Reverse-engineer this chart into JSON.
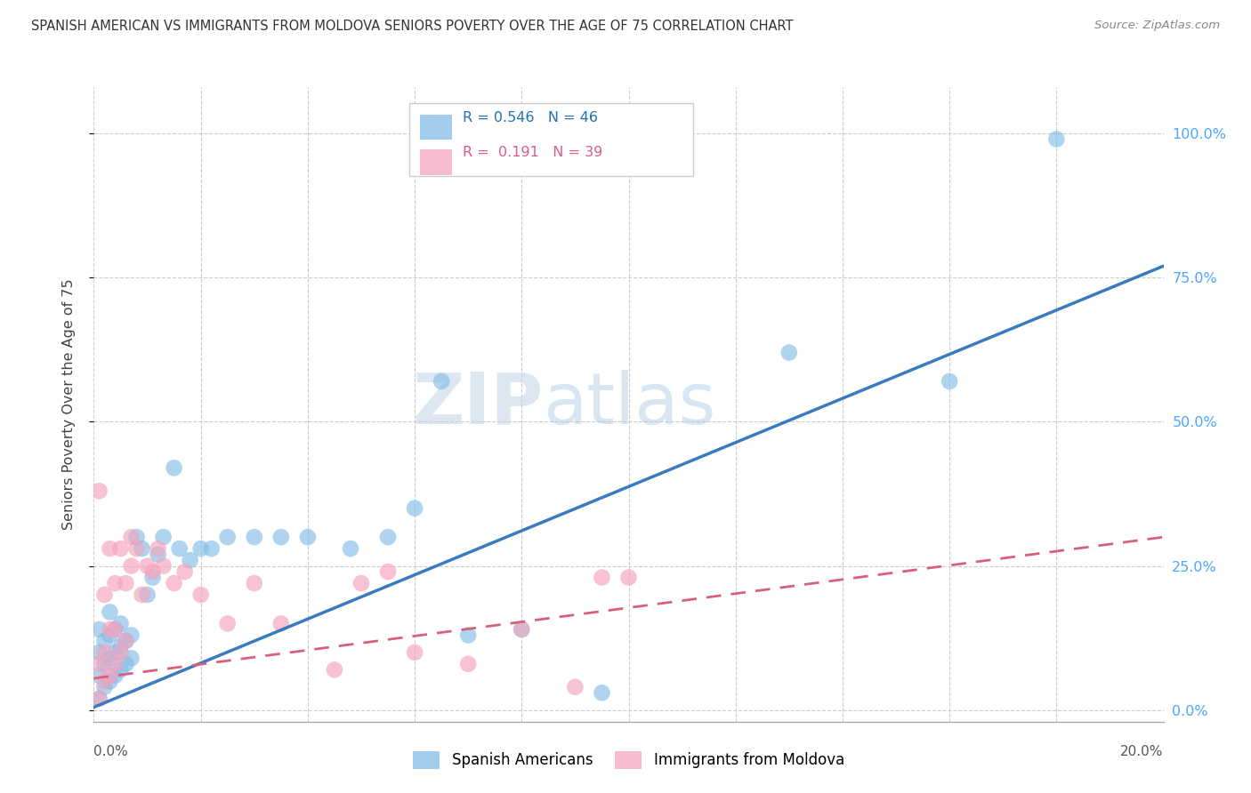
{
  "title": "SPANISH AMERICAN VS IMMIGRANTS FROM MOLDOVA SENIORS POVERTY OVER THE AGE OF 75 CORRELATION CHART",
  "source": "Source: ZipAtlas.com",
  "ylabel": "Seniors Poverty Over the Age of 75",
  "xmin": 0.0,
  "xmax": 0.2,
  "ymin": -0.02,
  "ymax": 1.08,
  "yticks": [
    0.0,
    0.25,
    0.5,
    0.75,
    1.0
  ],
  "ytick_labels": [
    "0.0%",
    "25.0%",
    "50.0%",
    "75.0%",
    "100.0%"
  ],
  "legend1_R": "0.546",
  "legend1_N": "46",
  "legend2_R": "0.191",
  "legend2_N": "39",
  "legend1_label": "Spanish Americans",
  "legend2_label": "Immigrants from Moldova",
  "blue_color": "#85bde8",
  "pink_color": "#f4a4bc",
  "blue_line_color": "#3a7bbf",
  "pink_line_color": "#d9607a",
  "watermark_zip": "ZIP",
  "watermark_atlas": "atlas",
  "blue_trendline_x0": 0.0,
  "blue_trendline_y0": 0.005,
  "blue_trendline_x1": 0.2,
  "blue_trendline_y1": 0.77,
  "pink_trendline_x0": 0.0,
  "pink_trendline_y0": 0.055,
  "pink_trendline_x1": 0.2,
  "pink_trendline_y1": 0.3,
  "blue_scatter_x": [
    0.001,
    0.001,
    0.001,
    0.001,
    0.002,
    0.002,
    0.002,
    0.003,
    0.003,
    0.003,
    0.003,
    0.004,
    0.004,
    0.004,
    0.005,
    0.005,
    0.005,
    0.006,
    0.006,
    0.007,
    0.007,
    0.008,
    0.009,
    0.01,
    0.011,
    0.012,
    0.013,
    0.015,
    0.016,
    0.018,
    0.02,
    0.022,
    0.025,
    0.03,
    0.035,
    0.04,
    0.048,
    0.055,
    0.06,
    0.065,
    0.07,
    0.08,
    0.095,
    0.13,
    0.16,
    0.18
  ],
  "blue_scatter_y": [
    0.02,
    0.06,
    0.1,
    0.14,
    0.04,
    0.08,
    0.12,
    0.05,
    0.09,
    0.13,
    0.17,
    0.06,
    0.1,
    0.14,
    0.07,
    0.11,
    0.15,
    0.08,
    0.12,
    0.09,
    0.13,
    0.3,
    0.28,
    0.2,
    0.23,
    0.27,
    0.3,
    0.42,
    0.28,
    0.26,
    0.28,
    0.28,
    0.3,
    0.3,
    0.3,
    0.3,
    0.28,
    0.3,
    0.35,
    0.57,
    0.13,
    0.14,
    0.03,
    0.62,
    0.57,
    0.99
  ],
  "pink_scatter_x": [
    0.001,
    0.001,
    0.001,
    0.002,
    0.002,
    0.002,
    0.003,
    0.003,
    0.003,
    0.004,
    0.004,
    0.004,
    0.005,
    0.005,
    0.006,
    0.006,
    0.007,
    0.007,
    0.008,
    0.009,
    0.01,
    0.011,
    0.012,
    0.013,
    0.015,
    0.017,
    0.02,
    0.025,
    0.03,
    0.035,
    0.045,
    0.05,
    0.055,
    0.06,
    0.07,
    0.08,
    0.09,
    0.095,
    0.1
  ],
  "pink_scatter_y": [
    0.02,
    0.08,
    0.38,
    0.05,
    0.1,
    0.2,
    0.06,
    0.14,
    0.28,
    0.08,
    0.14,
    0.22,
    0.1,
    0.28,
    0.12,
    0.22,
    0.25,
    0.3,
    0.28,
    0.2,
    0.25,
    0.24,
    0.28,
    0.25,
    0.22,
    0.24,
    0.2,
    0.15,
    0.22,
    0.15,
    0.07,
    0.22,
    0.24,
    0.1,
    0.08,
    0.14,
    0.04,
    0.23,
    0.23
  ]
}
